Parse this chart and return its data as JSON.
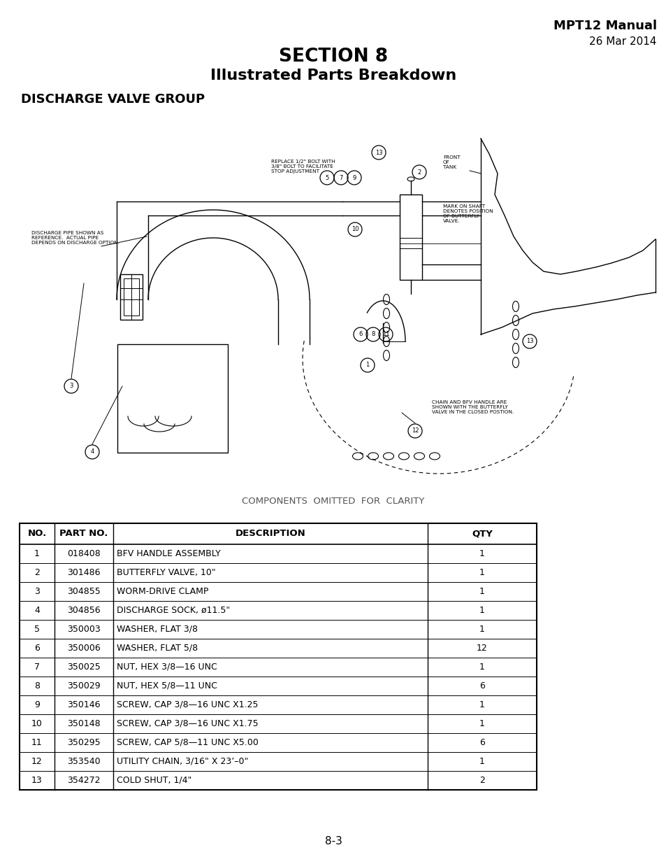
{
  "header_right_line1": "MPT12 Manual",
  "header_right_line2": "26 Mar 2014",
  "title_line1": "SECTION 8",
  "title_line2": "Illustrated Parts Breakdown",
  "section_title": "DISCHARGE VALVE GROUP",
  "diagram_note": "COMPONENTS  OMITTED  FOR  CLARITY",
  "footer_page": "8-3",
  "table_headers": [
    "NO.",
    "PART NO.",
    "DESCRIPTION",
    "QTY"
  ],
  "table_rows": [
    [
      "1",
      "018408",
      "BFV HANDLE ASSEMBLY",
      "1"
    ],
    [
      "2",
      "301486",
      "BUTTERFLY VALVE, 10\"",
      "1"
    ],
    [
      "3",
      "304855",
      "WORM-DRIVE CLAMP",
      "1"
    ],
    [
      "4",
      "304856",
      "DISCHARGE SOCK, ø11.5\"",
      "1"
    ],
    [
      "5",
      "350003",
      "WASHER, FLAT 3/8",
      "1"
    ],
    [
      "6",
      "350006",
      "WASHER, FLAT 5/8",
      "12"
    ],
    [
      "7",
      "350025",
      "NUT, HEX 3/8—16 UNC",
      "1"
    ],
    [
      "8",
      "350029",
      "NUT, HEX 5/8—11 UNC",
      "6"
    ],
    [
      "9",
      "350146",
      "SCREW, CAP 3/8—16 UNC X1.25",
      "1"
    ],
    [
      "10",
      "350148",
      "SCREW, CAP 3/8—16 UNC X1.75",
      "1"
    ],
    [
      "11",
      "350295",
      "SCREW, CAP 5/8—11 UNC X5.00",
      "6"
    ],
    [
      "12",
      "353540",
      "UTILITY CHAIN, 3/16\" X 23’–0\"",
      "1"
    ],
    [
      "13",
      "354272",
      "COLD SHUT, 1/4\"",
      "2"
    ]
  ],
  "bg_color": "#ffffff",
  "text_color": "#000000"
}
